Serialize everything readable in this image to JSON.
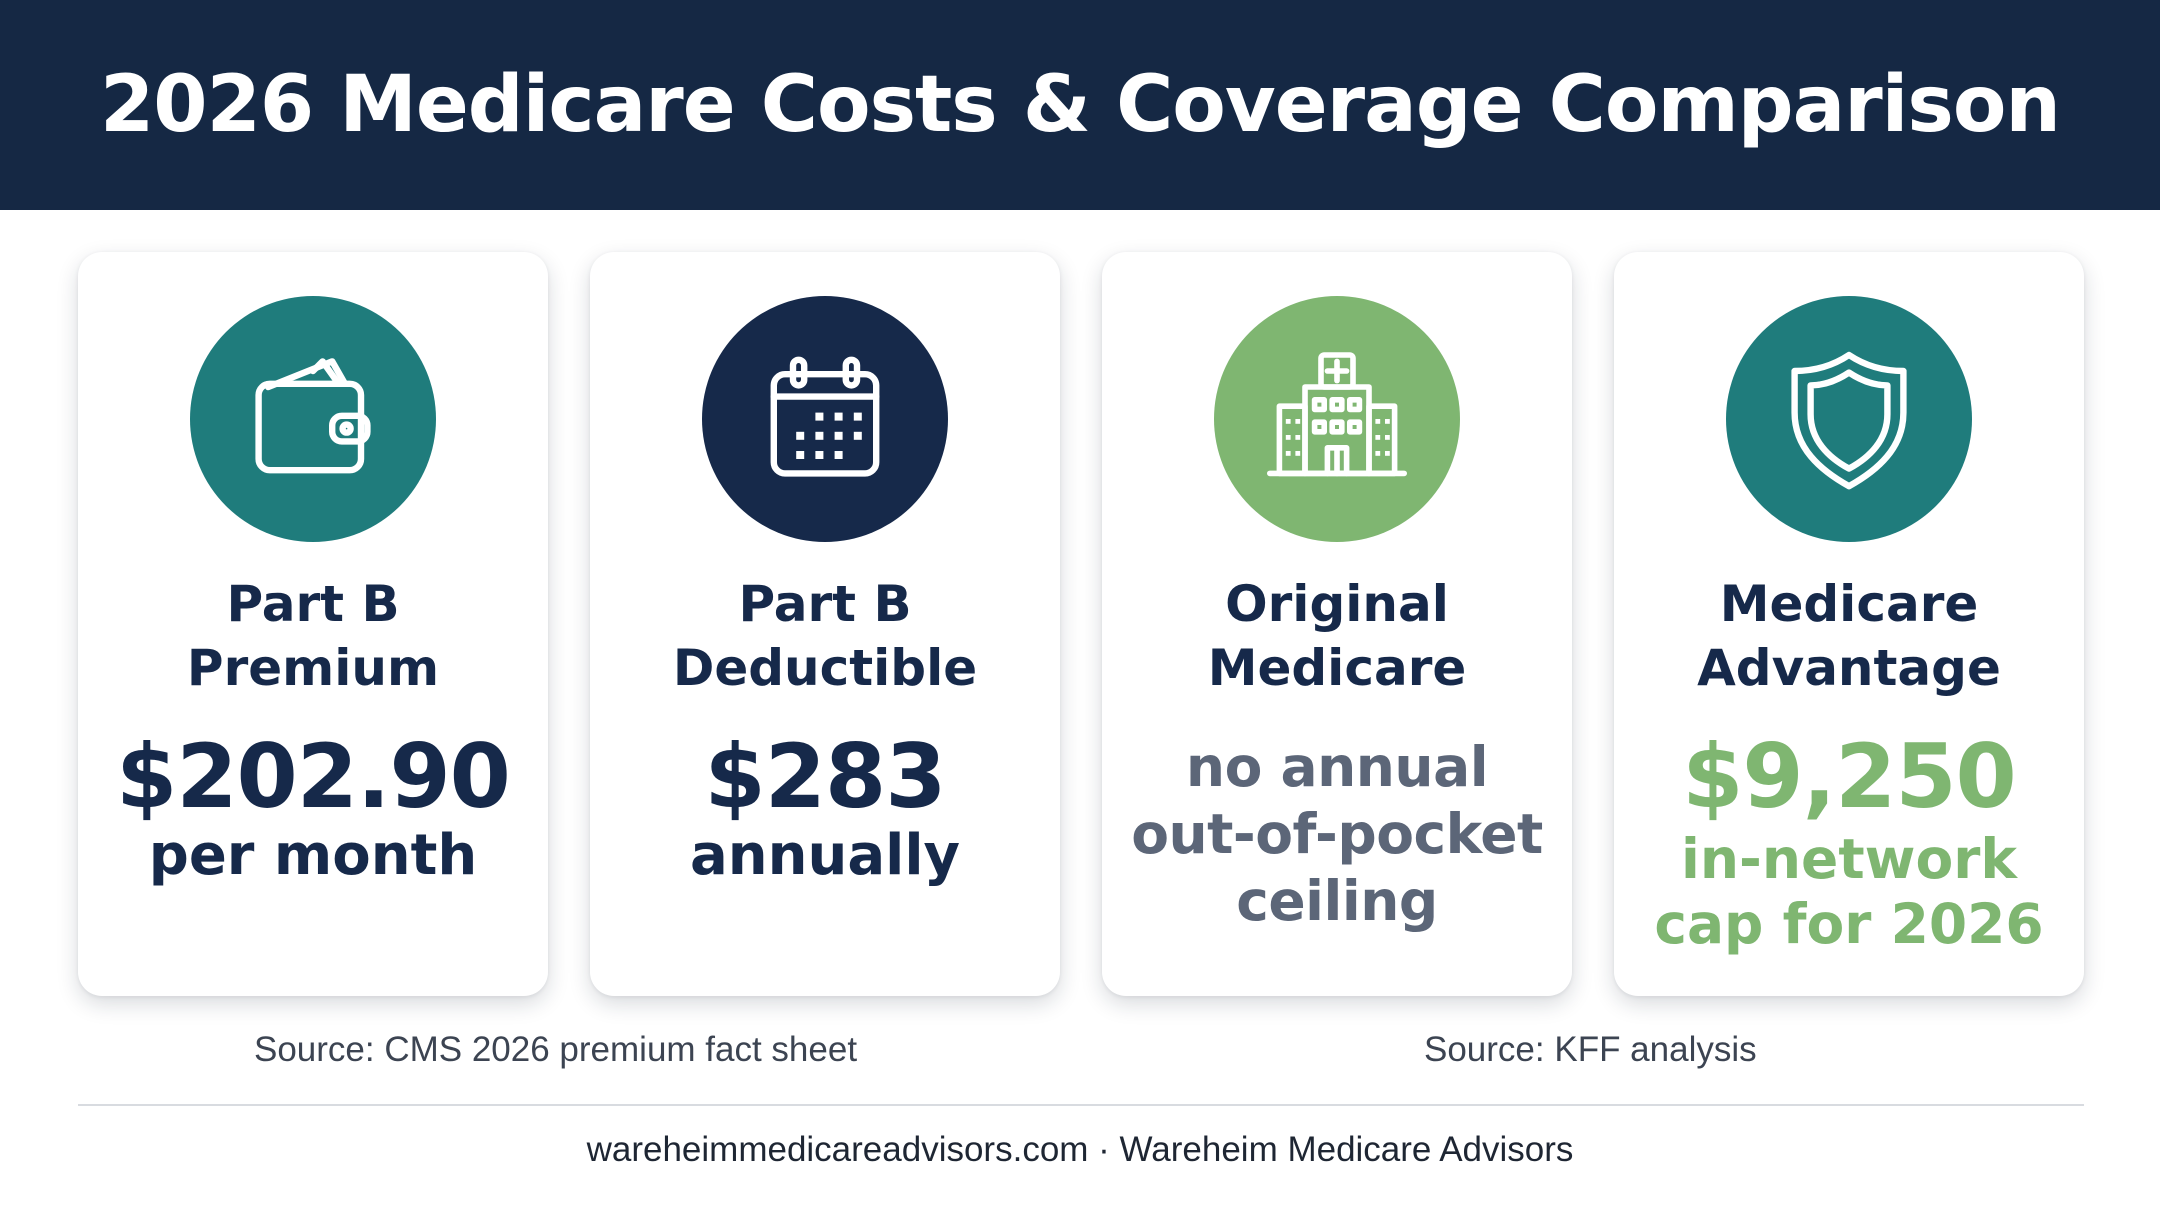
{
  "header": {
    "title": "2026 Medicare Costs & Coverage Comparison"
  },
  "cards": [
    {
      "icon": "wallet-icon",
      "title_lines": [
        "Part B",
        "Premium"
      ],
      "value": "$202.90",
      "note": "per month"
    },
    {
      "icon": "calendar-icon",
      "title_lines": [
        "Part B",
        "Deductible"
      ],
      "value": "$283",
      "note": "annually"
    },
    {
      "icon": "hospital-icon",
      "title_lines": [
        "Original",
        "Medicare"
      ],
      "note_lines": [
        "no annual",
        "out-of-pocket",
        "ceiling"
      ]
    },
    {
      "icon": "shield-icon",
      "title_lines": [
        "Medicare",
        "Advantage"
      ],
      "value": "$9,250",
      "note_lines": [
        "in-network",
        "cap for 2026"
      ]
    }
  ],
  "sources": [
    "Source: CMS 2026 premium fact sheet",
    "Source: KFF analysis"
  ],
  "footer": "wareheimmedicareadvisors.com · Wareheim Medicare Advisors",
  "colors": {
    "navy": "#16294a",
    "teal": "#1f7c7c",
    "green": "#7fb671",
    "gray": "#5c6678"
  }
}
